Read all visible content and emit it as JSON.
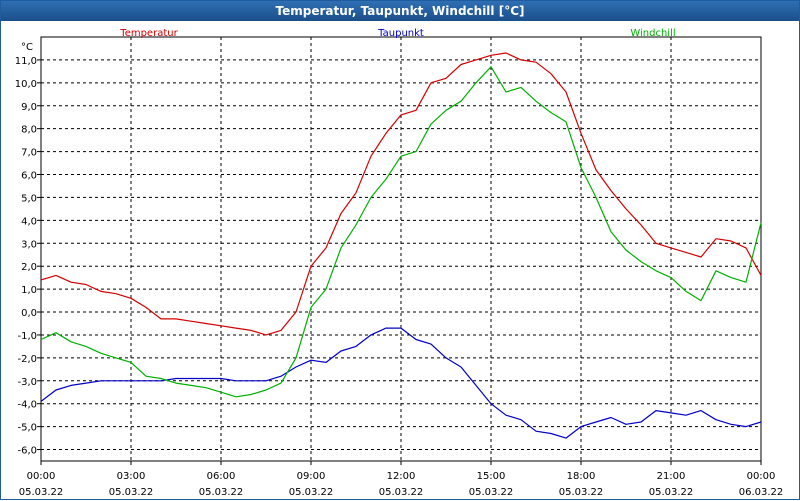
{
  "window": {
    "title": "Temperatur, Taupunkt, Windchill [°C]"
  },
  "chart_data": {
    "type": "line",
    "title": "Temperatur, Taupunkt, Windchill [°C]",
    "ylabel": "°C",
    "ylim": [
      -6.5,
      12.0
    ],
    "y_ticks": [
      11.0,
      10.0,
      9.0,
      8.0,
      7.0,
      6.0,
      5.0,
      4.0,
      3.0,
      2.0,
      1.0,
      0.0,
      -1.0,
      -2.0,
      -3.0,
      -4.0,
      -5.0,
      -6.0
    ],
    "y_tick_labels": [
      "11,0",
      "10,0",
      "9,0",
      "8,0",
      "7,0",
      "6,0",
      "5,0",
      "4,0",
      "3,0",
      "2,0",
      "1,0",
      "0,0",
      "-1,0",
      "-2,0",
      "-3,0",
      "-4,0",
      "-5,0",
      "-6,0"
    ],
    "xlim": [
      0,
      24
    ],
    "x_ticks": [
      0,
      3,
      6,
      9,
      12,
      15,
      18,
      21,
      24
    ],
    "x_tick_times": [
      "00:00",
      "03:00",
      "06:00",
      "09:00",
      "12:00",
      "15:00",
      "18:00",
      "21:00",
      "00:00"
    ],
    "x_tick_dates": [
      "05.03.22",
      "05.03.22",
      "05.03.22",
      "05.03.22",
      "05.03.22",
      "05.03.22",
      "05.03.22",
      "05.03.22",
      "06.03.22"
    ],
    "grid": true,
    "legend": [
      "Temperatur",
      "Taupunkt",
      "Windchill"
    ],
    "x": [
      0,
      0.5,
      1,
      1.5,
      2,
      2.5,
      3,
      3.5,
      4,
      4.5,
      5,
      5.5,
      6,
      6.5,
      7,
      7.5,
      8,
      8.5,
      9,
      9.5,
      10,
      10.5,
      11,
      11.5,
      12,
      12.5,
      13,
      13.5,
      14,
      14.5,
      15,
      15.5,
      16,
      16.5,
      17,
      17.5,
      18,
      18.5,
      19,
      19.5,
      20,
      20.5,
      21,
      21.5,
      22,
      22.5,
      23,
      23.5,
      24
    ],
    "series": [
      {
        "name": "Temperatur",
        "color": "#d40000",
        "values": [
          1.4,
          1.6,
          1.3,
          1.2,
          0.9,
          0.8,
          0.6,
          0.2,
          -0.3,
          -0.3,
          -0.4,
          -0.5,
          -0.6,
          -0.7,
          -0.8,
          -1.0,
          -0.8,
          0.0,
          2.0,
          2.8,
          4.3,
          5.2,
          6.8,
          7.8,
          8.6,
          8.8,
          10.0,
          10.2,
          10.8,
          11.0,
          11.2,
          11.3,
          11.0,
          10.9,
          10.4,
          9.6,
          7.8,
          6.2,
          5.3,
          4.5,
          3.8,
          3.0,
          2.8,
          2.6,
          2.4,
          3.2,
          3.1,
          2.8,
          1.6
        ]
      },
      {
        "name": "Taupunkt",
        "color": "#0000c8",
        "values": [
          -3.9,
          -3.4,
          -3.2,
          -3.1,
          -3.0,
          -3.0,
          -3.0,
          -3.0,
          -3.0,
          -2.9,
          -2.9,
          -2.9,
          -2.9,
          -3.0,
          -3.0,
          -3.0,
          -2.8,
          -2.4,
          -2.1,
          -2.2,
          -1.7,
          -1.5,
          -1.0,
          -0.7,
          -0.7,
          -1.2,
          -1.4,
          -2.0,
          -2.4,
          -3.2,
          -4.0,
          -4.5,
          -4.7,
          -5.2,
          -5.3,
          -5.5,
          -5.0,
          -4.8,
          -4.6,
          -4.9,
          -4.8,
          -4.3,
          -4.4,
          -4.5,
          -4.3,
          -4.7,
          -4.9,
          -5.0,
          -4.8
        ]
      },
      {
        "name": "Windchill",
        "color": "#00b000",
        "values": [
          -1.2,
          -0.9,
          -1.3,
          -1.5,
          -1.8,
          -2.0,
          -2.2,
          -2.8,
          -2.9,
          -3.1,
          -3.2,
          -3.3,
          -3.5,
          -3.7,
          -3.6,
          -3.4,
          -3.1,
          -2.0,
          0.2,
          1.0,
          2.8,
          3.8,
          5.0,
          5.8,
          6.8,
          7.0,
          8.2,
          8.8,
          9.2,
          10.0,
          10.7,
          9.6,
          9.8,
          9.2,
          8.7,
          8.3,
          6.3,
          5.0,
          3.5,
          2.7,
          2.2,
          1.8,
          1.5,
          0.9,
          0.5,
          1.8,
          1.5,
          1.3,
          3.9
        ]
      }
    ]
  }
}
